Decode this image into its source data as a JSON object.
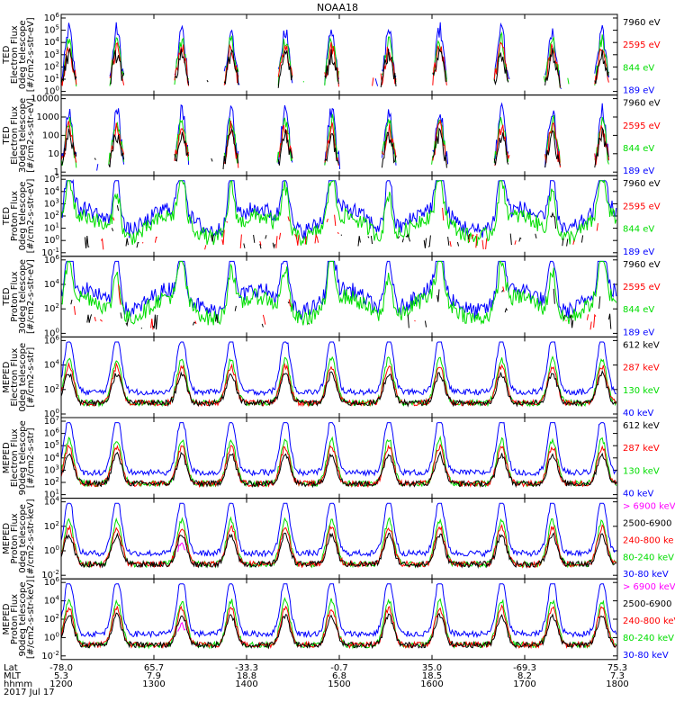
{
  "title": "NOAA18",
  "chart_data": {
    "type": "line",
    "time_axis": {
      "rows": [
        {
          "label": "Lat",
          "values": [
            "-78.0",
            "65.7",
            "-33.3",
            "-0.7",
            "35.0",
            "-69.3",
            "75.3"
          ]
        },
        {
          "label": "MLT",
          "values": [
            "5.3",
            "7.9",
            "18.8",
            "6.8",
            "18.5",
            "8.2",
            "7.3"
          ]
        },
        {
          "label": "hhmm",
          "values": [
            "1200",
            "1300",
            "1400",
            "1500",
            "1600",
            "1700",
            "1800"
          ]
        }
      ],
      "date": "2017 Jul 17",
      "range": [
        "1200",
        "1800"
      ]
    },
    "colors": {
      "black": "#000000",
      "red": "#ff0000",
      "green": "#00dd00",
      "blue": "#0000ff",
      "magenta": "#ff00ff"
    },
    "panels": [
      {
        "ylabel": [
          "TED",
          "Electron Flux",
          "0deg telescope",
          "[#/cm2-s-str-eV]"
        ],
        "yscale": "log",
        "ticks": [
          "10^0",
          "10^1",
          "10^2",
          "10^3",
          "10^4",
          "10^5",
          "10^6"
        ],
        "legend": [
          {
            "label": "7960 eV",
            "color": "black"
          },
          {
            "label": "2595 eV",
            "color": "red"
          },
          {
            "label": "844 eV",
            "color": "green"
          },
          {
            "label": "189 eV",
            "color": "blue"
          }
        ]
      },
      {
        "ylabel": [
          "TED",
          "Electron Flux",
          "30deg telescope",
          "[#/cm2-s-str-eV]"
        ],
        "yscale": "log",
        "ticks": [
          "1",
          "10",
          "100",
          "1000",
          "10000"
        ],
        "legend": [
          {
            "label": "7960 eV",
            "color": "black"
          },
          {
            "label": "2595 eV",
            "color": "red"
          },
          {
            "label": "844 eV",
            "color": "green"
          },
          {
            "label": "189 eV",
            "color": "blue"
          }
        ]
      },
      {
        "ylabel": [
          "TED",
          "Proton Flux",
          "0deg telescope",
          "[#/cm2-s-str-eV]"
        ],
        "yscale": "log",
        "ticks": [
          "10^-1",
          "10^0",
          "10^1",
          "10^2",
          "10^3",
          "10^4",
          "10^5"
        ],
        "legend": [
          {
            "label": "7960 eV",
            "color": "black"
          },
          {
            "label": "2595 eV",
            "color": "red"
          },
          {
            "label": "844 eV",
            "color": "green"
          },
          {
            "label": "189 eV",
            "color": "blue"
          }
        ]
      },
      {
        "ylabel": [
          "TED",
          "Proton Flux",
          "30deg telescope",
          "[#/cm2-s-str-eV]"
        ],
        "yscale": "log",
        "ticks": [
          "10^0",
          "10^2",
          "10^4",
          "10^6"
        ],
        "legend": [
          {
            "label": "7960 eV",
            "color": "black"
          },
          {
            "label": "2595 eV",
            "color": "red"
          },
          {
            "label": "844 eV",
            "color": "green"
          },
          {
            "label": "189 eV",
            "color": "blue"
          }
        ]
      },
      {
        "ylabel": [
          "MEPED",
          "Electron Flux",
          "0deg telescope",
          "[#/cm2-s-str]"
        ],
        "yscale": "log",
        "ticks": [
          "10^0",
          "10^2",
          "10^4",
          "10^6"
        ],
        "legend": [
          {
            "label": "612 keV",
            "color": "black"
          },
          {
            "label": "287 keV",
            "color": "red"
          },
          {
            "label": "130 keV",
            "color": "green"
          },
          {
            "label": "40 keV",
            "color": "blue"
          }
        ]
      },
      {
        "ylabel": [
          "MEPED",
          "Electron Flux",
          "90deg telescope",
          "[#/cm2-s-str]"
        ],
        "yscale": "log",
        "ticks": [
          "10^1",
          "10^2",
          "10^3",
          "10^4",
          "10^5",
          "10^6",
          "10^7"
        ],
        "legend": [
          {
            "label": "612 keV",
            "color": "black"
          },
          {
            "label": "287 keV",
            "color": "red"
          },
          {
            "label": "130 keV",
            "color": "green"
          },
          {
            "label": "40 keV",
            "color": "blue"
          }
        ]
      },
      {
        "ylabel": [
          "MEPED",
          "Proton Flux",
          "0deg telescope",
          "[#/cm2-s-str-keV]"
        ],
        "yscale": "log",
        "ticks": [
          "10^-2",
          "10^0",
          "10^2",
          "10^4"
        ],
        "legend": [
          {
            "label": "> 6900 keV",
            "color": "magenta"
          },
          {
            "label": "2500-6900",
            "color": "black"
          },
          {
            "label": "240-800 ke",
            "color": "red"
          },
          {
            "label": "80-240 keV",
            "color": "green"
          },
          {
            "label": "30-80 keV",
            "color": "blue"
          }
        ]
      },
      {
        "ylabel": [
          "MEPED",
          "Proton Flux",
          "90deg telescope",
          "[#/cm2-s-str-keV]"
        ],
        "yscale": "log",
        "ticks": [
          "10^-2",
          "10^0",
          "10^2",
          "10^4",
          "10^6"
        ],
        "legend": [
          {
            "label": "> 6900 keV",
            "color": "magenta"
          },
          {
            "label": "2500-6900",
            "color": "black"
          },
          {
            "label": "240-800 keV",
            "color": "red"
          },
          {
            "label": "80-240 keV",
            "color": "green"
          },
          {
            "label": "30-80 keV",
            "color": "blue"
          }
        ]
      }
    ],
    "approx_series": {
      "pass_centers_minutes": [
        5,
        36,
        78,
        110,
        145,
        175,
        212,
        245,
        285,
        318,
        350
      ],
      "note_units": "minutes after 1200 UT; values are log10 flux"
    }
  }
}
